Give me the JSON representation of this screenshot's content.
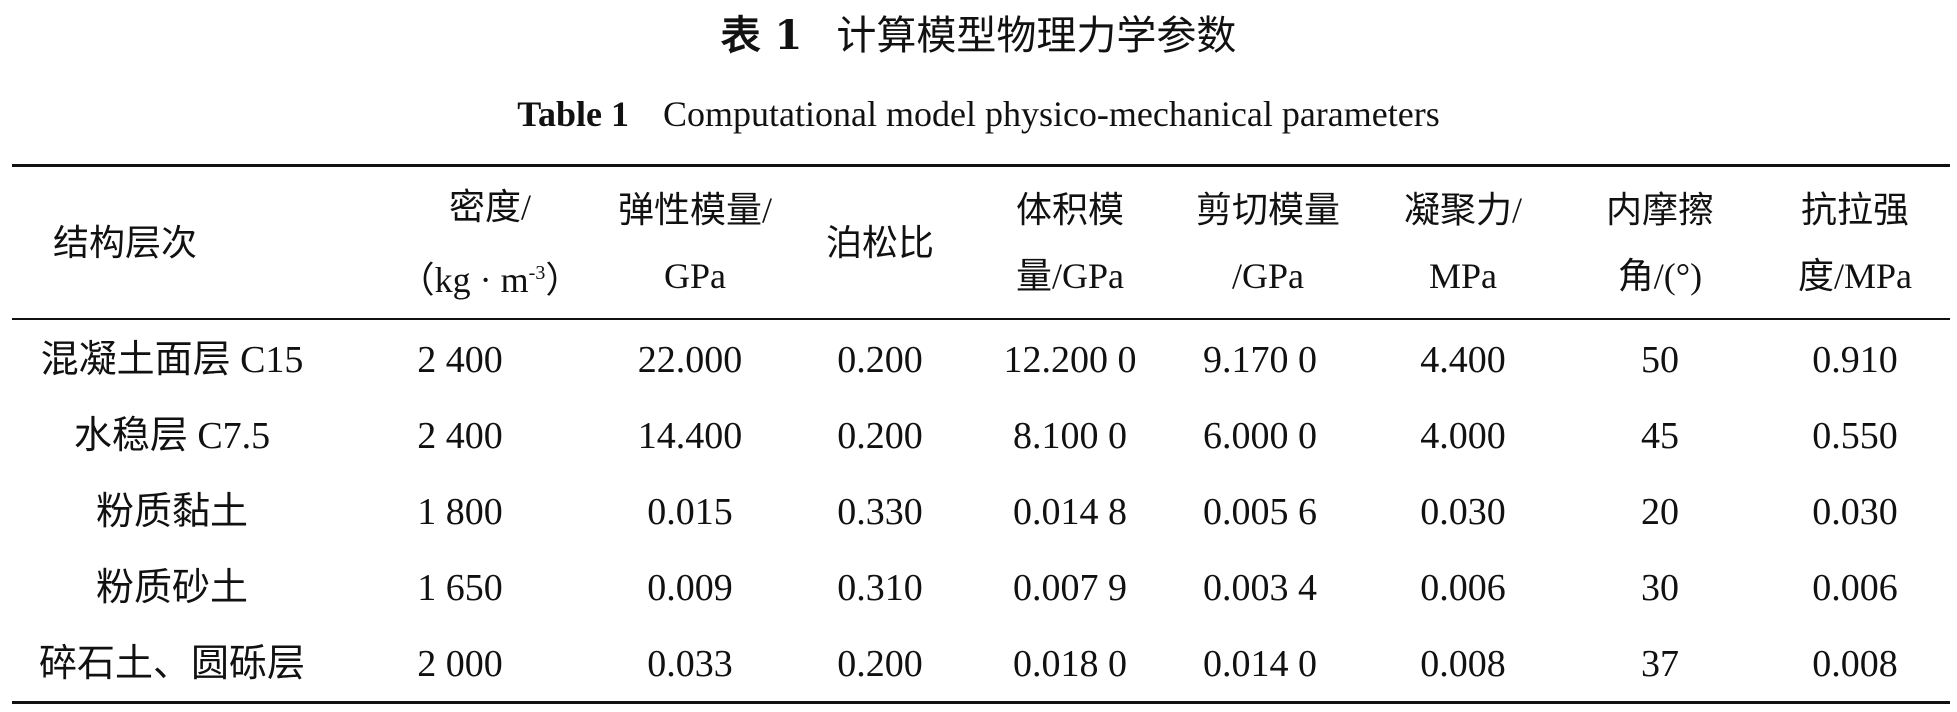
{
  "caption": {
    "cn_number": "表 1",
    "cn_title": "计算模型物理力学参数",
    "en_number": "Table 1",
    "en_title": "Computational model physico-mechanical parameters"
  },
  "table": {
    "headers": [
      {
        "key": "layer",
        "lines": [
          "结构层次"
        ]
      },
      {
        "key": "density",
        "lines": [
          "密度/",
          "（kg · m",
          "）"
        ],
        "sup": "-3"
      },
      {
        "key": "elastic_modulus",
        "lines": [
          "弹性模量/",
          "GPa"
        ]
      },
      {
        "key": "poisson_ratio",
        "lines": [
          "泊松比"
        ]
      },
      {
        "key": "bulk_modulus",
        "lines": [
          "体积模",
          "量/GPa"
        ]
      },
      {
        "key": "shear_modulus",
        "lines": [
          "剪切模量",
          "/GPa"
        ]
      },
      {
        "key": "cohesion",
        "lines": [
          "凝聚力/",
          "MPa"
        ]
      },
      {
        "key": "friction_angle",
        "lines": [
          "内摩擦",
          "角/(°)"
        ]
      },
      {
        "key": "tensile_strength",
        "lines": [
          "抗拉强",
          "度/MPa"
        ]
      }
    ],
    "rows": [
      [
        "混凝土面层 C15",
        "2 400",
        "22.000",
        "0.200",
        "12.200 0",
        "9.170 0",
        "4.400",
        "50",
        "0.910"
      ],
      [
        "水稳层 C7.5",
        "2 400",
        "14.400",
        "0.200",
        "8.100 0",
        "6.000 0",
        "4.000",
        "45",
        "0.550"
      ],
      [
        "粉质黏土",
        "1 800",
        "0.015",
        "0.330",
        "0.014 8",
        "0.005 6",
        "0.030",
        "20",
        "0.030"
      ],
      [
        "粉质砂土",
        "1 650",
        "0.009",
        "0.310",
        "0.007 9",
        "0.003 4",
        "0.006",
        "30",
        "0.006"
      ],
      [
        "碎石土、圆砾层",
        "2 000",
        "0.033",
        "0.200",
        "0.018 0",
        "0.014 0",
        "0.008",
        "37",
        "0.008"
      ]
    ]
  }
}
